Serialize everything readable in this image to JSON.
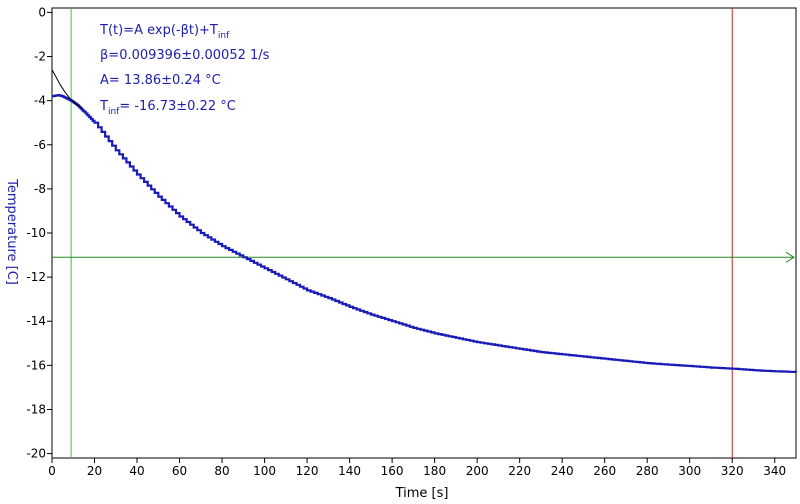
{
  "colors": {
    "series": "#1a1ab8",
    "fit": "#000000",
    "axis_title_y": "#2020b0",
    "axis_title_x": "#000000",
    "cursor_left": "#33cc33",
    "cursor_right": "#cc2222",
    "level_line": "#228b22",
    "annotation": "#2020b0",
    "frame": "#000000"
  },
  "chart_data": {
    "type": "line",
    "xlabel": "Time [s]",
    "ylabel": "Temperature [C]",
    "xlim": [
      0,
      350
    ],
    "ylim": [
      -20.2,
      0.2
    ],
    "xticks": [
      0,
      20,
      40,
      60,
      80,
      100,
      120,
      140,
      160,
      180,
      200,
      220,
      240,
      260,
      280,
      300,
      320,
      340
    ],
    "yticks": [
      0,
      -2,
      -4,
      -6,
      -8,
      -10,
      -12,
      -14,
      -16,
      -18,
      -20
    ],
    "grid": false,
    "legend": "none",
    "annotations": {
      "line1_main": "T(t)=A exp(-βt)+T",
      "line1_sub": "inf",
      "line2": "β=0.009396±0.00052 1/s",
      "line3": "A= 13.86±0.24 °C",
      "line4_main": "T",
      "line4_sub": "inf",
      "line4_rest": "= -16.73±0.22 °C"
    },
    "measured": {
      "x": [
        0,
        3,
        5,
        7,
        9,
        12,
        15,
        20,
        30,
        40,
        50,
        60,
        70,
        80,
        90,
        100,
        110,
        120,
        130,
        140,
        150,
        160,
        170,
        180,
        190,
        200,
        210,
        220,
        230,
        240,
        250,
        260,
        270,
        280,
        290,
        300,
        310,
        320,
        330,
        340,
        350
      ],
      "y": [
        -3.8,
        -3.75,
        -3.8,
        -3.9,
        -4.0,
        -4.2,
        -4.5,
        -5.0,
        -6.25,
        -7.35,
        -8.35,
        -9.25,
        -10.0,
        -10.6,
        -11.1,
        -11.6,
        -12.1,
        -12.6,
        -12.95,
        -13.35,
        -13.7,
        -14.0,
        -14.3,
        -14.55,
        -14.75,
        -14.95,
        -15.1,
        -15.25,
        -15.4,
        -15.5,
        -15.6,
        -15.7,
        -15.8,
        -15.9,
        -15.97,
        -16.03,
        -16.1,
        -16.15,
        -16.22,
        -16.27,
        -16.3
      ]
    },
    "fit": {
      "x": [
        0,
        2,
        4,
        6,
        8,
        10,
        12,
        14
      ],
      "y": [
        -2.6,
        -2.95,
        -3.3,
        -3.6,
        -3.85,
        -4.05,
        -4.2,
        -4.35
      ]
    },
    "cursors": {
      "x_left": 9,
      "x_right": 320,
      "y_level": -11.1
    }
  }
}
